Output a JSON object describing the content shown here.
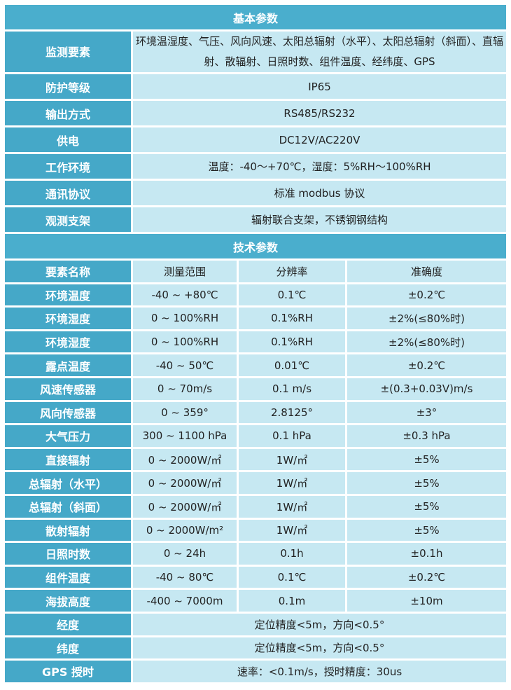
{
  "basic": {
    "title": "基本参数",
    "rows": [
      {
        "label": "监测要素",
        "value": "环境温湿度、气压、风向风速、太阳总辐射（水平）、太阳总辐射（斜面）、直辐射、散辐射、日照时数、组件温度、经纬度、GPS"
      },
      {
        "label": "防护等级",
        "value": "IP65"
      },
      {
        "label": "输出方式",
        "value": "RS485/RS232"
      },
      {
        "label": "供电",
        "value": "DC12V/AC220V"
      },
      {
        "label": "工作环境",
        "value": "温度：-40～+70℃，湿度：5%RH～100%RH"
      },
      {
        "label": "通讯协议",
        "value": "标准 modbus 协议"
      },
      {
        "label": "观测支架",
        "value": "辐射联合支架，不锈钢钢结构"
      }
    ]
  },
  "tech": {
    "title": "技术参数",
    "headers": [
      "要素名称",
      "测量范围",
      "分辨率",
      "准确度"
    ],
    "rows": [
      [
        "环境温度",
        "-40 ~ +80℃",
        "0.1℃",
        "±0.2℃"
      ],
      [
        "环境湿度",
        "0 ~ 100%RH",
        "0.1%RH",
        "±2%(≤80%时)"
      ],
      [
        "环境湿度",
        "0 ~ 100%RH",
        "0.1%RH",
        "±2%(≤80%时)"
      ],
      [
        "露点温度",
        "-40 ~ 50℃",
        "0.01℃",
        "±0.2℃"
      ],
      [
        "风速传感器",
        "0 ~ 70m/s",
        "0.1 m/s",
        "±(0.3+0.03V)m/s"
      ],
      [
        "风向传感器",
        "0 ~ 359°",
        "2.8125°",
        "±3°"
      ],
      [
        "大气压力",
        "300 ~ 1100 hPa",
        "0.1 hPa",
        "±0.3 hPa"
      ],
      [
        "直接辐射",
        "0 ~ 2000W/㎡",
        "1W/㎡",
        "±5%"
      ],
      [
        "总辐射（水平）",
        "0 ~ 2000W/㎡",
        "1W/㎡",
        "±5%"
      ],
      [
        "总辐射（斜面）",
        "0 ~ 2000W/㎡",
        "1W/㎡",
        "±5%"
      ],
      [
        "散射辐射",
        "0 ~ 2000W/m²",
        "1W/㎡",
        "±5%"
      ],
      [
        "日照时数",
        "0 ~ 24h",
        "0.1h",
        "±0.1h"
      ],
      [
        "组件温度",
        "-40 ~ 80℃",
        "0.1℃",
        "±0.2℃"
      ],
      [
        "海拔高度",
        "-400 ~ 7000m",
        "0.1m",
        "±10m"
      ]
    ],
    "merged_rows": [
      {
        "label": "经度",
        "value": "定位精度<5m，方向<0.5°"
      },
      {
        "label": "纬度",
        "value": "定位精度<5m，方向<0.5°"
      },
      {
        "label": "GPS 授时",
        "value": "速率：<0.1m/s，授时精度：30us"
      }
    ]
  },
  "colors": {
    "header": "#4aaecd",
    "label": "#45a8c8",
    "cell": "#c6e8f2"
  }
}
